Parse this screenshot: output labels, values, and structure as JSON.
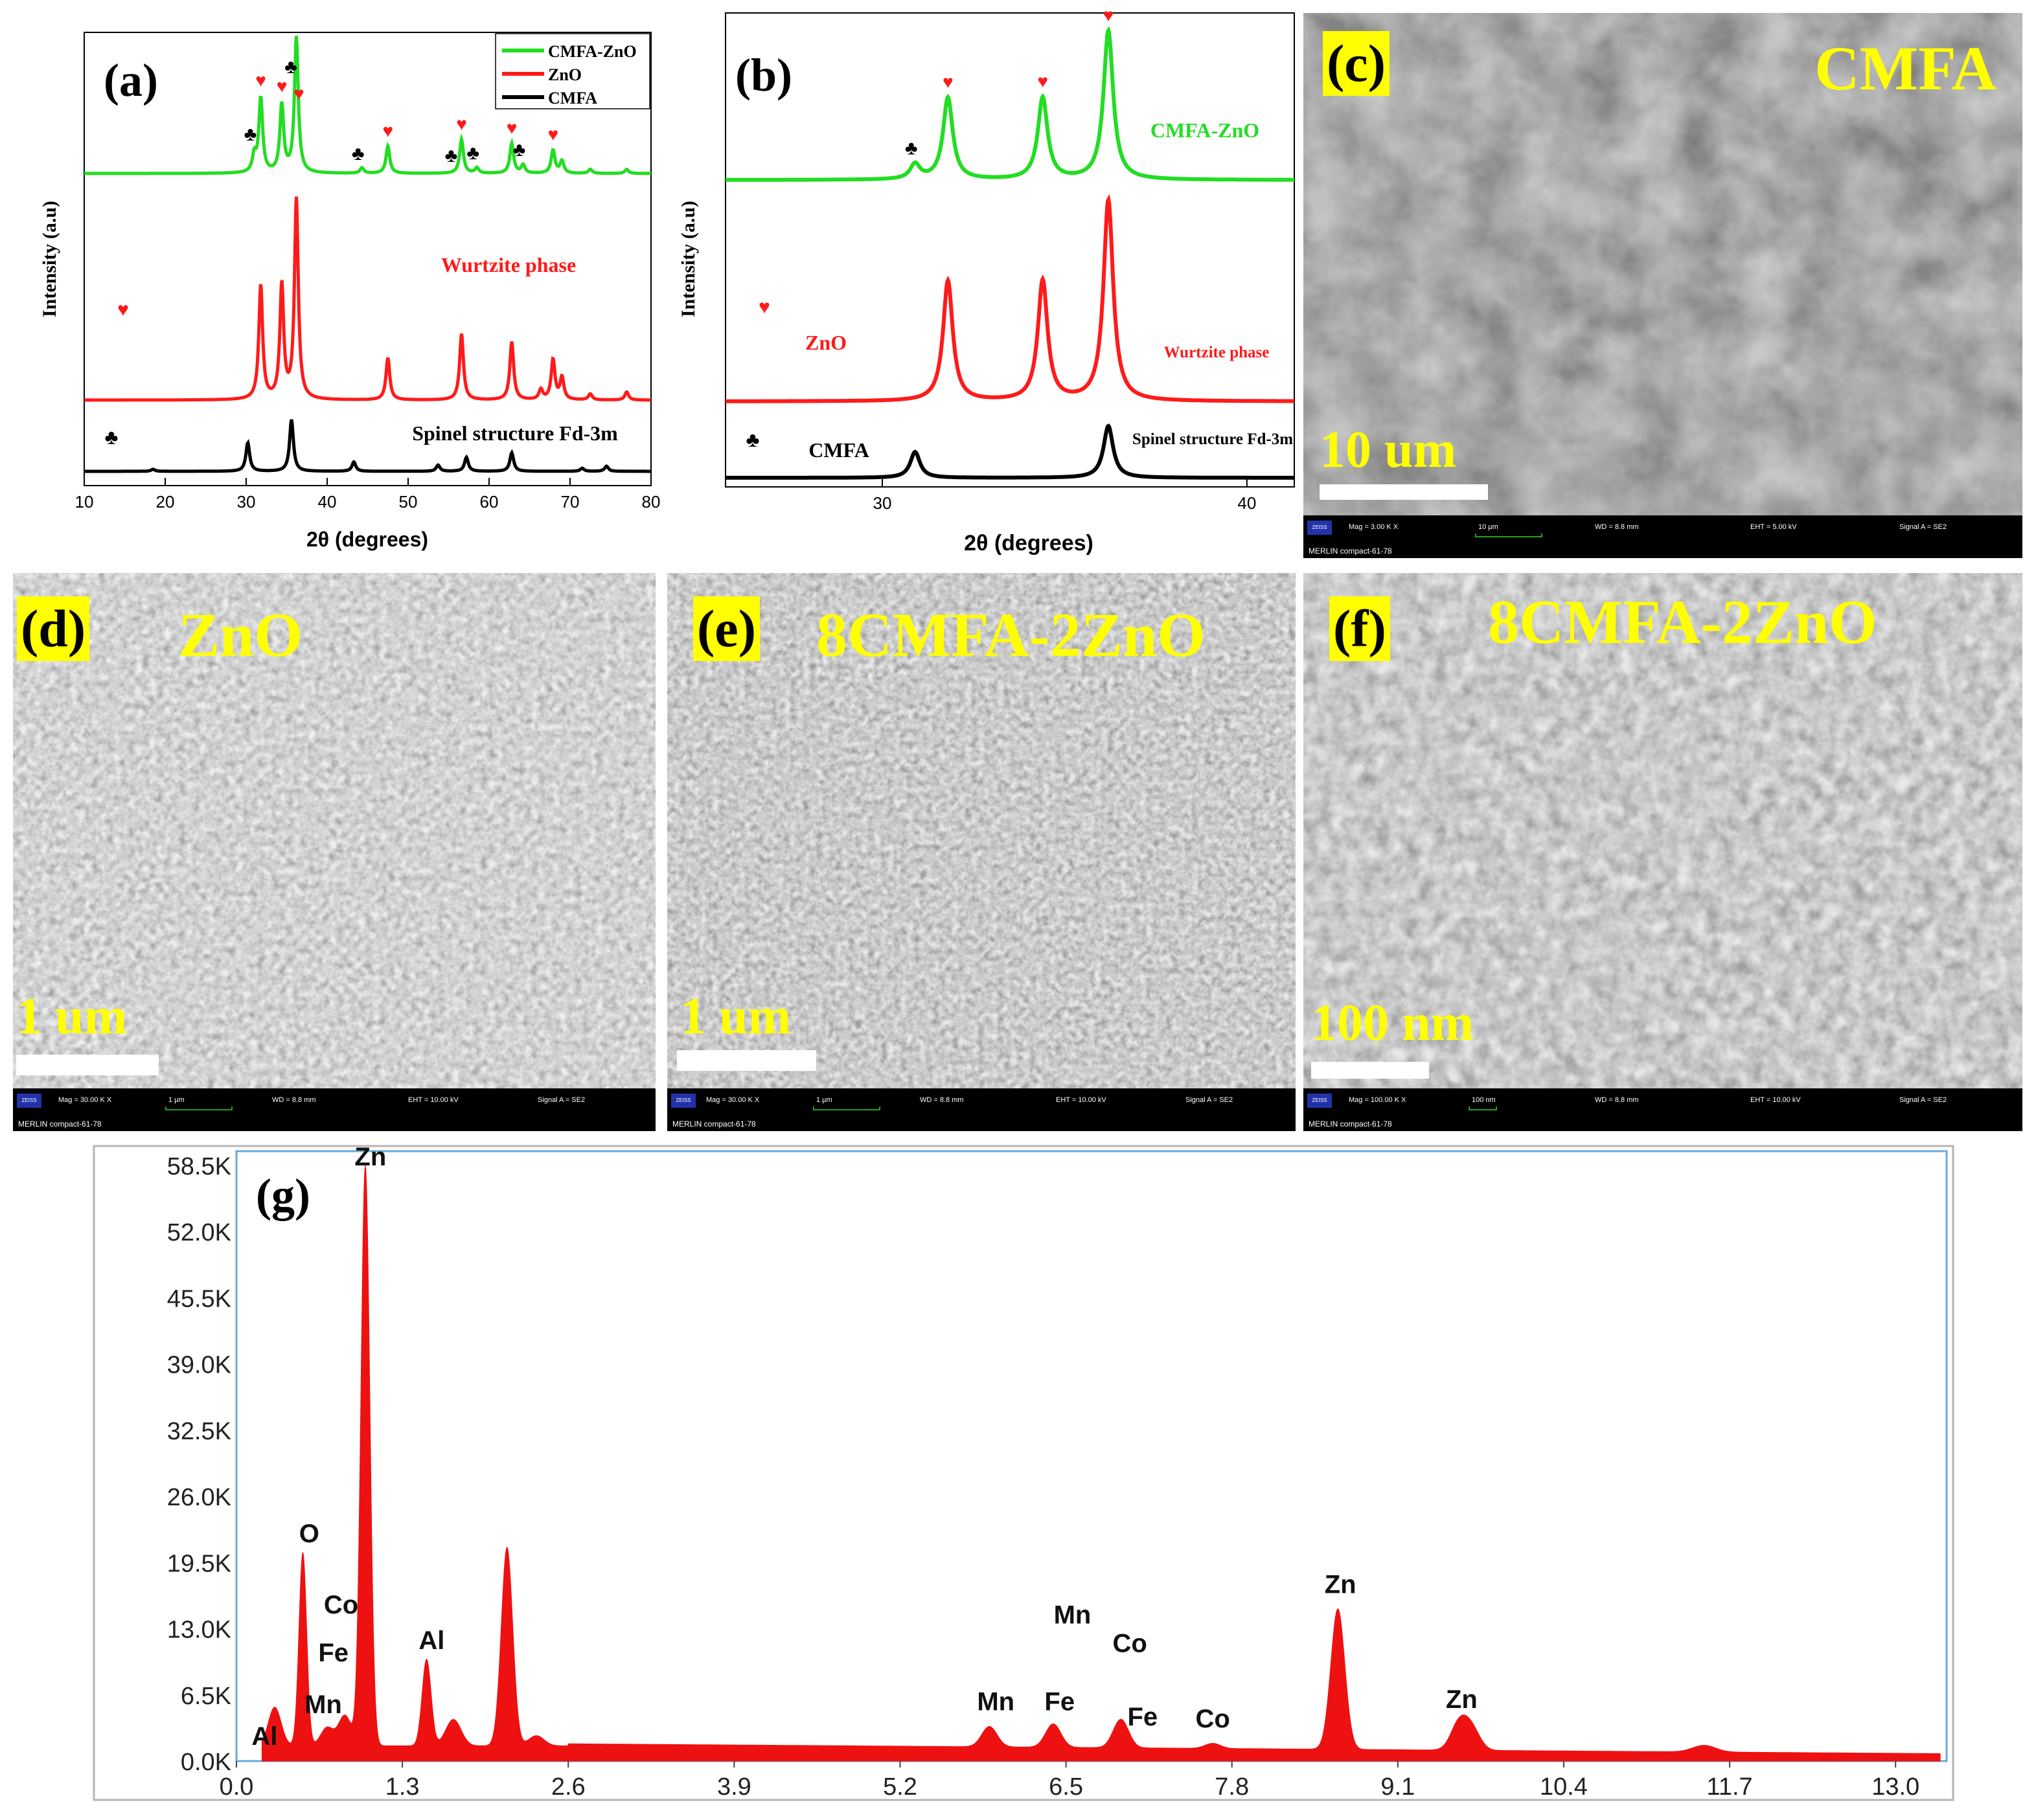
{
  "chart_data": [
    {
      "id": "a",
      "type": "line",
      "panel_label": "(a)",
      "xlabel": "2θ (degrees)",
      "ylabel": "Intensity (a.u)",
      "xlim": [
        10,
        80
      ],
      "xticks": [
        10,
        20,
        30,
        40,
        50,
        60,
        70,
        80
      ],
      "legend": [
        "CMFA-ZnO",
        "ZnO",
        "CMFA"
      ],
      "legend_position": "top-right",
      "series": [
        {
          "name": "CMFA-ZnO",
          "color": "#22dd22",
          "peaks": [
            {
              "x": 31.0,
              "h": 0.12
            },
            {
              "x": 31.8,
              "h": 0.55
            },
            {
              "x": 34.4,
              "h": 0.5
            },
            {
              "x": 36.2,
              "h": 1.0
            },
            {
              "x": 44.3,
              "h": 0.04
            },
            {
              "x": 47.5,
              "h": 0.2
            },
            {
              "x": 56.6,
              "h": 0.25
            },
            {
              "x": 58.5,
              "h": 0.04
            },
            {
              "x": 62.8,
              "h": 0.22
            },
            {
              "x": 64.2,
              "h": 0.06
            },
            {
              "x": 67.9,
              "h": 0.17
            },
            {
              "x": 69.0,
              "h": 0.09
            },
            {
              "x": 72.5,
              "h": 0.03
            },
            {
              "x": 77.0,
              "h": 0.03
            }
          ]
        },
        {
          "name": "ZnO",
          "color": "#ff1a1a",
          "peaks": [
            {
              "x": 31.8,
              "h": 0.57
            },
            {
              "x": 34.4,
              "h": 0.57
            },
            {
              "x": 36.2,
              "h": 1.0
            },
            {
              "x": 47.5,
              "h": 0.21
            },
            {
              "x": 56.6,
              "h": 0.33
            },
            {
              "x": 62.8,
              "h": 0.29
            },
            {
              "x": 66.4,
              "h": 0.05
            },
            {
              "x": 67.9,
              "h": 0.2
            },
            {
              "x": 69.0,
              "h": 0.11
            },
            {
              "x": 72.5,
              "h": 0.03
            },
            {
              "x": 77.0,
              "h": 0.04
            }
          ]
        },
        {
          "name": "CMFA",
          "color": "#000000",
          "peaks": [
            {
              "x": 18.5,
              "h": 0.04
            },
            {
              "x": 30.2,
              "h": 0.55
            },
            {
              "x": 35.6,
              "h": 1.0
            },
            {
              "x": 43.3,
              "h": 0.18
            },
            {
              "x": 53.7,
              "h": 0.12
            },
            {
              "x": 57.2,
              "h": 0.27
            },
            {
              "x": 62.8,
              "h": 0.36
            },
            {
              "x": 71.5,
              "h": 0.06
            },
            {
              "x": 74.5,
              "h": 0.1
            }
          ]
        }
      ],
      "annotations": {
        "wurtzite": "Wurtzite phase",
        "spinel": "Spinel structure Fd-3m"
      },
      "markers": {
        "heart": [
          31.8,
          34.4,
          36.5,
          47.5,
          56.6,
          62.8,
          67.9
        ],
        "club": [
          31.0,
          36.0,
          44.3,
          55.8,
          58.5,
          64.2
        ]
      }
    },
    {
      "id": "b",
      "type": "line",
      "panel_label": "(b)",
      "xlabel": "2θ (degrees)",
      "ylabel": "Intensity (a.u)",
      "xlim": [
        25.7,
        41.3
      ],
      "xticks": [
        30,
        40
      ],
      "series": [
        {
          "name": "CMFA-ZnO",
          "color": "#22dd22",
          "peaks": [
            {
              "x": 30.9,
              "h": 0.1
            },
            {
              "x": 31.8,
              "h": 0.55
            },
            {
              "x": 34.4,
              "h": 0.55
            },
            {
              "x": 36.2,
              "h": 1.0
            }
          ]
        },
        {
          "name": "ZnO",
          "color": "#ff1a1a",
          "peaks": [
            {
              "x": 31.8,
              "h": 0.6
            },
            {
              "x": 34.4,
              "h": 0.6
            },
            {
              "x": 36.2,
              "h": 1.0
            }
          ]
        },
        {
          "name": "CMFA",
          "color": "#000000",
          "peaks": [
            {
              "x": 30.9,
              "h": 0.5
            },
            {
              "x": 36.2,
              "h": 1.0
            }
          ]
        }
      ],
      "annotations": {
        "cmfa_zno": "CMFA-ZnO",
        "zno": "ZnO",
        "wurtzite": "Wurtzite phase",
        "cmfa": "CMFA",
        "spinel": "Spinel structure Fd-3m"
      },
      "markers": {
        "heart": [
          31.8,
          34.4,
          36.2
        ],
        "club": [
          30.9
        ]
      }
    },
    {
      "id": "g",
      "type": "area",
      "panel_label": "(g)",
      "xlim": [
        0.0,
        13.4
      ],
      "ylim": [
        0,
        58500
      ],
      "xticks": [
        0.0,
        1.3,
        2.6,
        3.9,
        5.2,
        6.5,
        7.8,
        9.1,
        10.4,
        11.7,
        13.0
      ],
      "yticks": [
        "0.0K",
        "6.5K",
        "13.0K",
        "19.5K",
        "26.0K",
        "32.5K",
        "39.0K",
        "45.5K",
        "52.0K",
        "58.5K"
      ],
      "color": "#ee1111",
      "peaks": [
        {
          "x": 0.3,
          "y": 3800,
          "w": 0.05
        },
        {
          "x": 0.52,
          "y": 19000,
          "w": 0.03
        },
        {
          "x": 0.71,
          "y": 1800,
          "w": 0.05
        },
        {
          "x": 0.85,
          "y": 3000,
          "w": 0.05
        },
        {
          "x": 1.01,
          "y": 57000,
          "w": 0.035
        },
        {
          "x": 1.49,
          "y": 8500,
          "w": 0.035
        },
        {
          "x": 1.7,
          "y": 2600,
          "w": 0.06
        },
        {
          "x": 2.12,
          "y": 19500,
          "w": 0.045
        },
        {
          "x": 2.35,
          "y": 1000,
          "w": 0.06
        },
        {
          "x": 5.9,
          "y": 2000,
          "w": 0.06
        },
        {
          "x": 6.4,
          "y": 2300,
          "w": 0.06
        },
        {
          "x": 6.93,
          "y": 2800,
          "w": 0.06
        },
        {
          "x": 7.65,
          "y": 500,
          "w": 0.06
        },
        {
          "x": 8.63,
          "y": 13800,
          "w": 0.055
        },
        {
          "x": 9.58,
          "y": 2600,
          "w": 0.065
        },
        {
          "x": 9.68,
          "y": 2000,
          "w": 0.065
        },
        {
          "x": 11.5,
          "y": 650,
          "w": 0.09
        }
      ],
      "labels": [
        {
          "text": "Zn",
          "x": 1.05,
          "y": 58500
        },
        {
          "text": "O",
          "x": 0.57,
          "y": 21500
        },
        {
          "text": "Co",
          "x": 0.82,
          "y": 14500
        },
        {
          "text": "Fe",
          "x": 0.76,
          "y": 9800
        },
        {
          "text": "Mn",
          "x": 0.68,
          "y": 4700
        },
        {
          "text": "Al",
          "x": 0.22,
          "y": 1600
        },
        {
          "text": "Al",
          "x": 1.53,
          "y": 11000
        },
        {
          "text": "Mn",
          "x": 5.95,
          "y": 5000
        },
        {
          "text": "Fe",
          "x": 6.45,
          "y": 5000
        },
        {
          "text": "Mn",
          "x": 6.55,
          "y": 13500
        },
        {
          "text": "Co",
          "x": 7.0,
          "y": 10700
        },
        {
          "text": "Fe",
          "x": 7.1,
          "y": 3500
        },
        {
          "text": "Co",
          "x": 7.65,
          "y": 3300
        },
        {
          "text": "Zn",
          "x": 8.65,
          "y": 16500
        },
        {
          "text": "Zn",
          "x": 9.6,
          "y": 5200
        }
      ]
    }
  ],
  "sem": {
    "c": {
      "label": "(c)",
      "title": "CMFA",
      "scale": "10 um",
      "info": {
        "mag": "Mag =   3.00 K X",
        "bar": "10 µm",
        "wd": "WD =  8.8 mm",
        "eht": "EHT =  5.00 kV",
        "signal": "Signal A = SE2",
        "name": "MERLIN compact-61-78",
        "logo": "ZEISS"
      }
    },
    "d": {
      "label": "(d)",
      "title": "ZnO",
      "scale": "1 um",
      "info": {
        "mag": "Mag =  30.00 K X",
        "bar": "1 µm",
        "wd": "WD =  8.8 mm",
        "eht": "EHT = 10.00 kV",
        "signal": "Signal A = SE2",
        "name": "MERLIN compact-61-78",
        "logo": "ZEISS"
      }
    },
    "e": {
      "label": "(e)",
      "title": "8CMFA-2ZnO",
      "scale": "1 um",
      "info": {
        "mag": "Mag =  30.00 K X",
        "bar": "1 µm",
        "wd": "WD =  8.8 mm",
        "eht": "EHT = 10.00 kV",
        "signal": "Signal A = SE2",
        "name": "MERLIN compact-61-78",
        "logo": "ZEISS"
      }
    },
    "f": {
      "label": "(f)",
      "title": "8CMFA-2ZnO",
      "scale": "100 nm",
      "info": {
        "mag": "Mag = 100.00 K X",
        "bar": "100 nm",
        "wd": "WD =  8.8 mm",
        "eht": "EHT = 10.00 kV",
        "signal": "Signal A = SE2",
        "name": "MERLIN compact-61-78",
        "logo": "ZEISS"
      }
    }
  },
  "colors": {
    "green": "#22dd22",
    "red": "#ff1a1a",
    "black": "#000000",
    "edx": "#ee1111",
    "highlight": "#ffff00"
  }
}
